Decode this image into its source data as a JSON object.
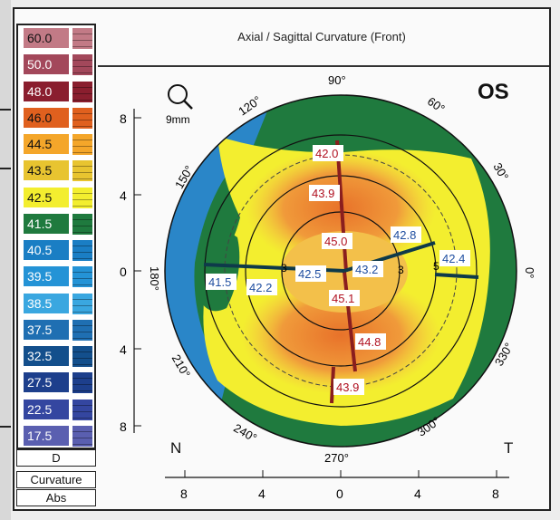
{
  "window": {
    "title": "Axial / Sagittal Curvature (Front)",
    "eye": "OS"
  },
  "scale": {
    "rows": [
      {
        "label": "60.0",
        "color": "#c27a86",
        "dark": true
      },
      {
        "label": "50.0",
        "color": "#a3485b",
        "dark": false
      },
      {
        "label": "48.0",
        "color": "#8a1e2e",
        "dark": false
      },
      {
        "label": "46.0",
        "color": "#e0601e",
        "dark": true
      },
      {
        "label": "44.5",
        "color": "#f4a62a",
        "dark": true
      },
      {
        "label": "43.5",
        "color": "#e8c430",
        "dark": true
      },
      {
        "label": "42.5",
        "color": "#f3ee2f",
        "dark": true
      },
      {
        "label": "41.5",
        "color": "#1f7a3e",
        "dark": false
      },
      {
        "label": "40.5",
        "color": "#1a7ec4",
        "dark": false
      },
      {
        "label": "39.5",
        "color": "#2493d6",
        "dark": false
      },
      {
        "label": "38.5",
        "color": "#3aa7e0",
        "dark": false
      },
      {
        "label": "37.5",
        "color": "#1f6fb2",
        "dark": false
      },
      {
        "label": "32.5",
        "color": "#134f8c",
        "dark": false
      },
      {
        "label": "27.5",
        "color": "#1d3f8c",
        "dark": false
      },
      {
        "label": "22.5",
        "color": "#3446a0",
        "dark": false
      },
      {
        "label": "17.5",
        "color": "#5a5fb0",
        "dark": false
      }
    ],
    "unit": "D",
    "mode": "Curvature",
    "type": "Abs"
  },
  "map": {
    "size_label": "9mm",
    "axis_labels": {
      "a0": "0°",
      "a30": "30°",
      "a60": "60°",
      "a90": "90°",
      "a120": "120°",
      "a150": "150°",
      "a180": "180°",
      "a210": "210°",
      "a240": "240°",
      "a270": "270°",
      "a300": "300°",
      "a330": "330°"
    },
    "y_ticks": [
      "8",
      "4",
      "0",
      "4",
      "8"
    ],
    "x_ticks": [
      "8",
      "4",
      "0",
      "4",
      "8"
    ],
    "corner_left": "N",
    "corner_right": "T",
    "values": {
      "v1": "42.0",
      "v2": "43.9",
      "v3": "45.0",
      "v4": "42.8",
      "v5": "42.4",
      "v6": "41.5",
      "v7": "42.2",
      "v8": "42.5",
      "v9": "43.2",
      "v10": "45.1",
      "v11": "44.8",
      "v12": "43.9"
    },
    "ring_marks": {
      "r3": "3",
      "r5": "5"
    }
  }
}
